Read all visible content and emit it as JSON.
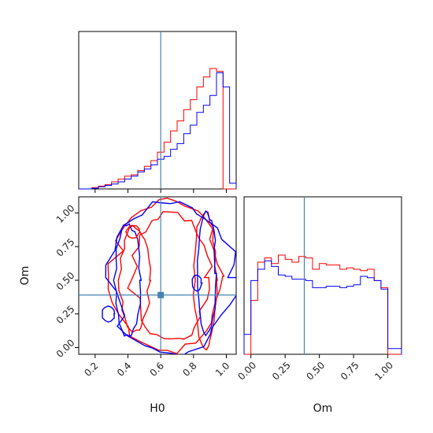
{
  "chart_data": {
    "type": "corner",
    "parameters": [
      "H0",
      "Om"
    ],
    "truth": {
      "H0": 0.6,
      "Om": 0.39
    },
    "truth_color": "#4682b4",
    "series": [
      {
        "color": "#ff0000"
      },
      {
        "color": "#0000ff"
      }
    ],
    "panels": {
      "H0_hist": {
        "xlim": [
          0.1,
          1.06
        ],
        "tick_values": [
          0.2,
          0.4,
          0.6,
          0.8,
          1.0
        ],
        "bin_edges": [
          0.1,
          0.14,
          0.18,
          0.22,
          0.26,
          0.3,
          0.34,
          0.38,
          0.42,
          0.46,
          0.5,
          0.54,
          0.58,
          0.62,
          0.66,
          0.7,
          0.74,
          0.78,
          0.82,
          0.86,
          0.9,
          0.94,
          0.98,
          1.02,
          1.06
        ],
        "series_counts": [
          [
            0,
            0,
            0.01,
            0.02,
            0.03,
            0.05,
            0.07,
            0.09,
            0.1,
            0.13,
            0.16,
            0.2,
            0.26,
            0.33,
            0.41,
            0.48,
            0.56,
            0.63,
            0.72,
            0.79,
            0.85,
            0.83,
            0,
            0
          ],
          [
            0,
            0,
            0.005,
            0.015,
            0.025,
            0.035,
            0.05,
            0.07,
            0.09,
            0.12,
            0.14,
            0.17,
            0.21,
            0.23,
            0.28,
            0.32,
            0.39,
            0.45,
            0.54,
            0.59,
            0.66,
            0.82,
            0.72,
            0.04
          ]
        ]
      },
      "H0_Om_contour": {
        "xlim": [
          0.1,
          1.06
        ],
        "ylim": [
          -0.05,
          1.12
        ],
        "xticks": [
          "0.2",
          "0.4",
          "0.6",
          "0.8",
          "1.0"
        ],
        "yticks": [
          "0.00",
          "0.25",
          "0.50",
          "0.75",
          "1.00"
        ],
        "xtick_values": [
          0.2,
          0.4,
          0.6,
          0.8,
          1.0
        ],
        "ytick_values": [
          0.0,
          0.25,
          0.5,
          0.75,
          1.0
        ],
        "xlabel": "H0",
        "ylabel": "Om"
      },
      "Om_hist": {
        "xlim": [
          -0.05,
          1.1
        ],
        "xticks": [
          "0.00",
          "0.25",
          "0.50",
          "0.75",
          "1.00"
        ],
        "xtick_values": [
          0.0,
          0.25,
          0.5,
          0.75,
          1.0
        ],
        "xlabel": "Om",
        "bin_edges": [
          -0.05,
          0.0,
          0.05,
          0.1,
          0.15,
          0.2,
          0.25,
          0.3,
          0.35,
          0.4,
          0.45,
          0.5,
          0.55,
          0.6,
          0.65,
          0.7,
          0.75,
          0.8,
          0.85,
          0.9,
          0.95,
          1.0,
          1.05,
          1.1
        ],
        "series_counts": [
          [
            0,
            0.38,
            0.65,
            0.68,
            0.64,
            0.7,
            0.67,
            0.65,
            0.69,
            0.68,
            0.6,
            0.64,
            0.63,
            0.63,
            0.6,
            0.61,
            0.6,
            0.59,
            0.6,
            0.52,
            0.47,
            0,
            0
          ],
          [
            0.14,
            0.52,
            0.6,
            0.66,
            0.62,
            0.56,
            0.55,
            0.53,
            0.53,
            0.52,
            0.47,
            0.47,
            0.48,
            0.48,
            0.47,
            0.48,
            0.49,
            0.55,
            0.54,
            0.52,
            0.46,
            0.04,
            0.04
          ]
        ]
      }
    }
  }
}
